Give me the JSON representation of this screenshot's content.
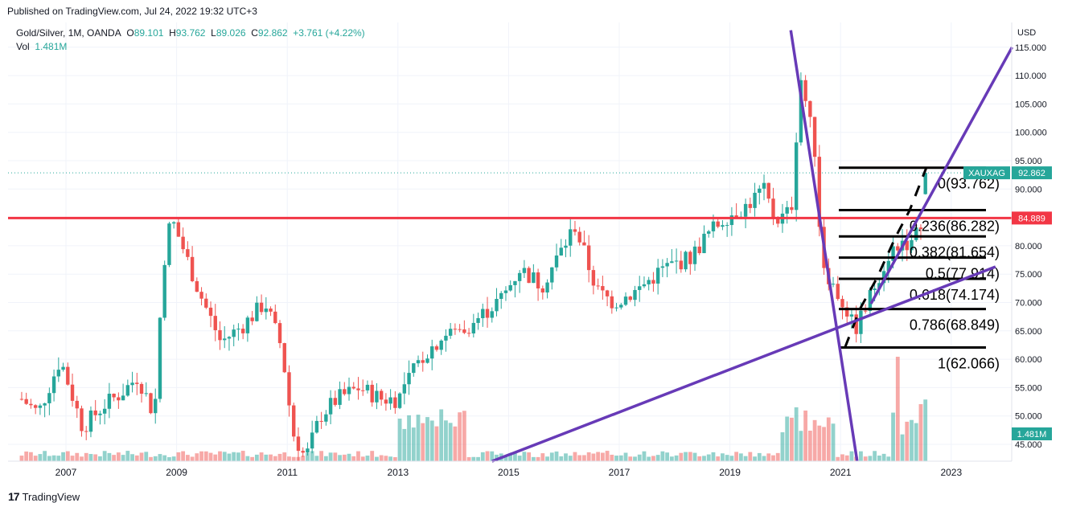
{
  "header": {
    "published": "Published on TradingView.com, Jul 24, 2022 19:32 UTC+3",
    "symbol": "Gold/Silver, 1M, OANDA",
    "o_label": "O",
    "o_value": "89.101",
    "h_label": "H",
    "h_value": "93.762",
    "l_label": "L",
    "l_value": "89.026",
    "c_label": "C",
    "c_value": "92.862",
    "change": "+3.761 (+4.22%)",
    "vol_label": "Vol",
    "vol_value": "1.481M"
  },
  "footer": {
    "brand": "TradingView"
  },
  "colors": {
    "up": "#26a69a",
    "down": "#ef5350",
    "trend": "#673ab7",
    "hline": "#f23645"
  },
  "chart_data": {
    "type": "candlestick",
    "currency_label": "USD",
    "y_ticks": [
      "45.000",
      "50.000",
      "55.000",
      "60.000",
      "65.000",
      "70.000",
      "75.000",
      "80.000",
      "85.000",
      "90.000",
      "95.000",
      "100.000",
      "105.000",
      "110.000",
      "115.000"
    ],
    "x_ticks": [
      "2007",
      "2009",
      "2011",
      "2013",
      "2015",
      "2017",
      "2019",
      "2021",
      "2023"
    ],
    "last_price": {
      "symbol": "XAUXAG",
      "value": 92.862
    },
    "horizontal_line": {
      "value": 84.889,
      "label": "84.889"
    },
    "volume_label": "1.481M",
    "fib_levels": [
      {
        "ratio": 0,
        "price": 93.762,
        "label": "0(93.762)"
      },
      {
        "ratio": 0.236,
        "price": 86.282,
        "label": "0.236(86.282)"
      },
      {
        "ratio": 0.382,
        "price": 81.654,
        "label": "0.382(81.654)"
      },
      {
        "ratio": 0.5,
        "price": 77.914,
        "label": "0.5(77.914)"
      },
      {
        "ratio": 0.618,
        "price": 74.174,
        "label": "0.618(74.174)"
      },
      {
        "ratio": 0.786,
        "price": 68.849,
        "label": "0.786(68.849)"
      },
      {
        "ratio": 1,
        "price": 62.066,
        "label": "1(62.066)"
      }
    ],
    "trend_lines": [
      {
        "from": [
          2014.7,
          42.0
        ],
        "to": [
          2023.8,
          76.3
        ]
      },
      {
        "from": [
          2021.55,
          69.8
        ],
        "to": [
          2024.1,
          115.0
        ]
      },
      {
        "from": [
          2020.1,
          118.0
        ],
        "to": [
          2021.3,
          42.0
        ]
      }
    ],
    "anchor_points": [
      [
        2006.2,
        53.0
      ],
      [
        2006.5,
        50.5
      ],
      [
        2006.9,
        60.0
      ],
      [
        2007.3,
        48.0
      ],
      [
        2007.7,
        52.0
      ],
      [
        2008.0,
        54.0
      ],
      [
        2008.3,
        57.0
      ],
      [
        2008.6,
        50.0
      ],
      [
        2008.75,
        76.0
      ],
      [
        2008.9,
        85.0
      ],
      [
        2009.1,
        80.0
      ],
      [
        2009.4,
        72.0
      ],
      [
        2009.8,
        63.0
      ],
      [
        2010.2,
        66.0
      ],
      [
        2010.6,
        70.0
      ],
      [
        2010.9,
        62.0
      ],
      [
        2011.1,
        47.0
      ],
      [
        2011.33,
        42.5
      ],
      [
        2011.6,
        50.0
      ],
      [
        2011.9,
        53.0
      ],
      [
        2012.3,
        55.0
      ],
      [
        2012.7,
        53.0
      ],
      [
        2013.0,
        53.0
      ],
      [
        2013.4,
        60.0
      ],
      [
        2013.8,
        64.0
      ],
      [
        2014.3,
        66.0
      ],
      [
        2014.9,
        71.0
      ],
      [
        2015.2,
        76.0
      ],
      [
        2015.6,
        73.0
      ],
      [
        2016.0,
        80.0
      ],
      [
        2016.2,
        83.5
      ],
      [
        2016.6,
        72.0
      ],
      [
        2016.9,
        70.0
      ],
      [
        2017.3,
        72.0
      ],
      [
        2017.8,
        76.0
      ],
      [
        2018.3,
        78.0
      ],
      [
        2018.6,
        82.0
      ],
      [
        2018.9,
        85.0
      ],
      [
        2019.3,
        87.0
      ],
      [
        2019.6,
        90.0
      ],
      [
        2019.8,
        85.0
      ],
      [
        2020.0,
        85.0
      ],
      [
        2020.15,
        88.0
      ],
      [
        2020.25,
        111.0
      ],
      [
        2020.4,
        104.0
      ],
      [
        2020.55,
        96.0
      ],
      [
        2020.65,
        78.0
      ],
      [
        2020.85,
        73.0
      ],
      [
        2021.1,
        69.0
      ],
      [
        2021.25,
        65.0
      ],
      [
        2021.45,
        69.0
      ],
      [
        2021.7,
        75.0
      ],
      [
        2021.9,
        79.0
      ],
      [
        2022.1,
        81.0
      ],
      [
        2022.3,
        80.0
      ],
      [
        2022.5,
        86.0
      ],
      [
        2022.55,
        92.862
      ]
    ]
  }
}
